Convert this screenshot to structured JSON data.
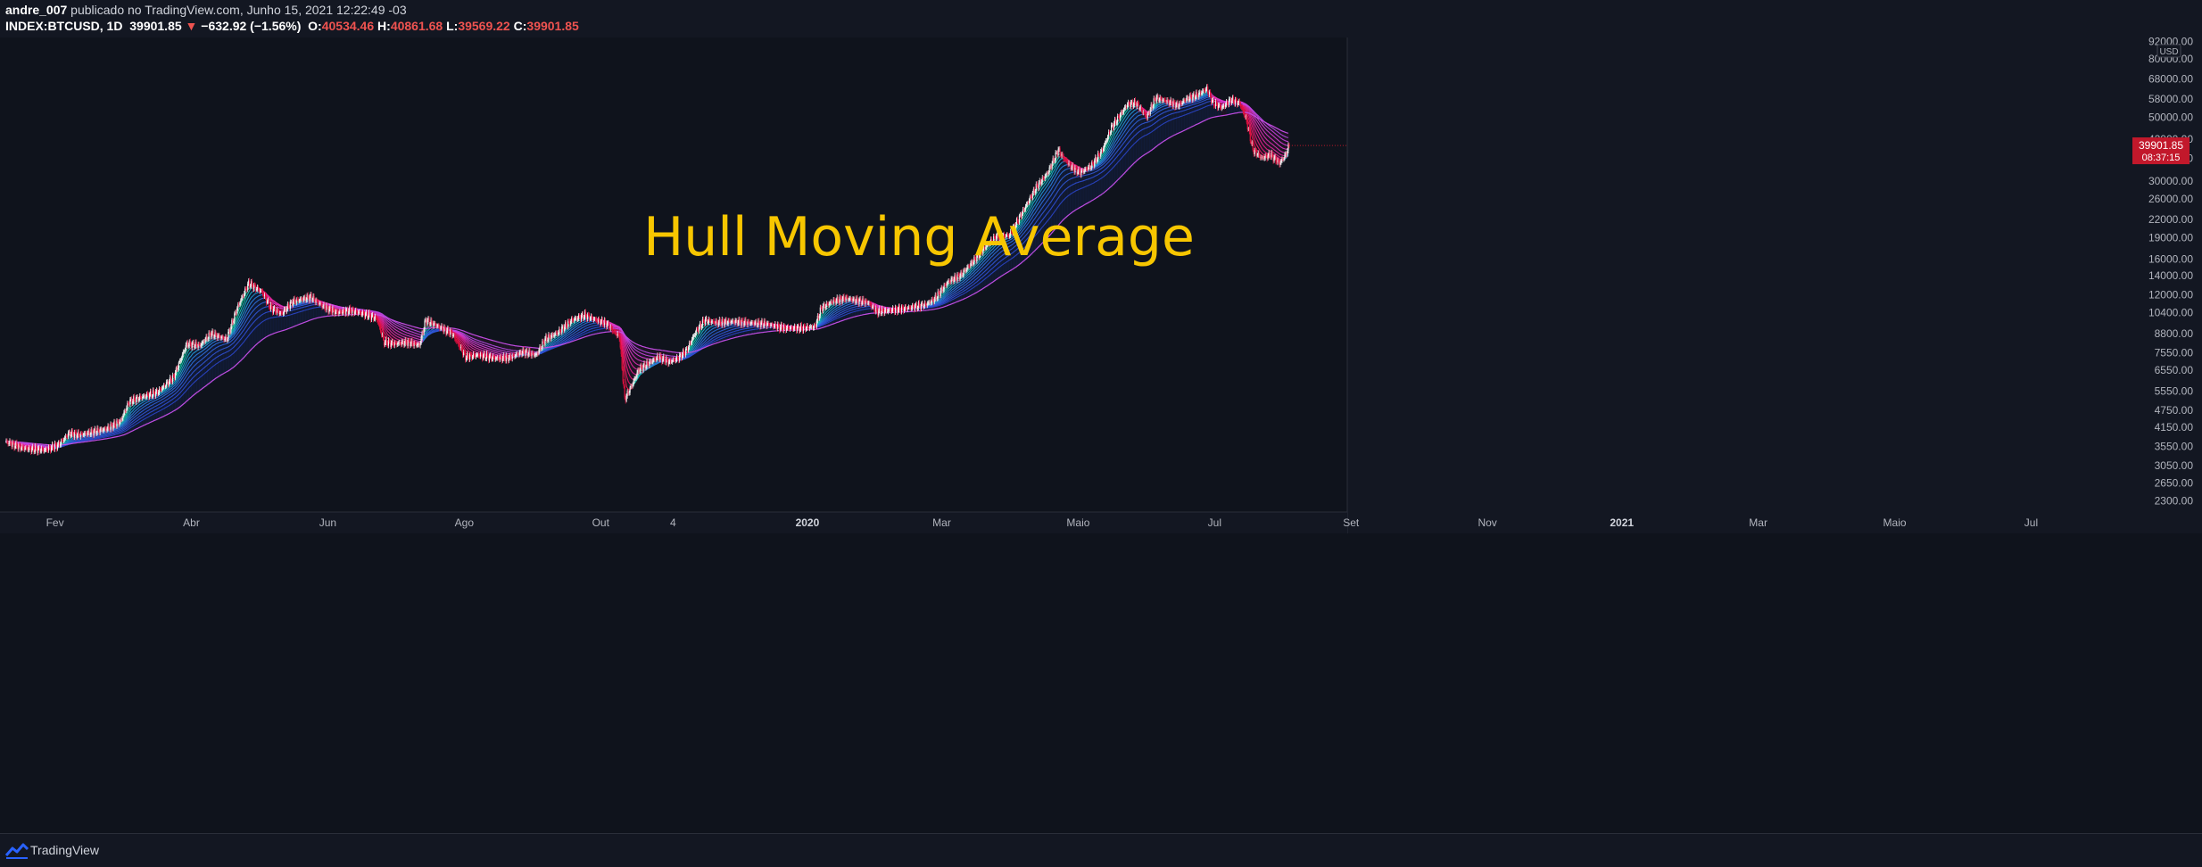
{
  "header": {
    "user": "andre_007",
    "published_text": " publicado no TradingView.com, Junho 15, 2021 12:22:49 -03",
    "symbol": "INDEX:BTCUSD, 1D",
    "last": "39901.85",
    "change": "−632.92 (−1.56%)",
    "open_label": "O:",
    "open": "40534.46",
    "high_label": "H:",
    "high": "40861.68",
    "low_label": "L:",
    "low": "39569.22",
    "close_label": "C:",
    "close": "39901.85"
  },
  "footer": {
    "brand": "TradingView"
  },
  "colors": {
    "background": "#0f131c",
    "up_candle": "#f2f2f2",
    "down_candle": "#e0103f",
    "bull_ribbon": [
      "#16d9a4",
      "#1ab0c8",
      "#2a7fe0",
      "#2f4fd6"
    ],
    "bear_ribbon": [
      "#ff1a55",
      "#e8208e",
      "#d83dd8"
    ],
    "title": "#f7c600",
    "price_label": "#c2182b"
  },
  "chart_data": {
    "type": "line",
    "title": "Hull Moving Average",
    "series_description": "BTCUSD daily candles with Hull Moving Average ribbon",
    "x_ticks": [
      "Fev",
      "Abr",
      "Jun",
      "Ago",
      "Out",
      "4",
      "2020",
      "Mar",
      "Maio",
      "Jul",
      "Set",
      "Nov",
      "2021",
      "Mar",
      "Maio",
      "Jul"
    ],
    "y_unit": "USD",
    "y_scale": "log",
    "y_ticks": [
      "92000.00",
      "80000.00",
      "68000.00",
      "58000.00",
      "50000.00",
      "42000.00",
      "36000.00",
      "30000.00",
      "26000.00",
      "22000.00",
      "19000.00",
      "16000.00",
      "14000.00",
      "12000.00",
      "10400.00",
      "8800.00",
      "7550.00",
      "6550.00",
      "5550.00",
      "4750.00",
      "4150.00",
      "3550.00",
      "3050.00",
      "2650.00",
      "2300.00"
    ],
    "ylim": [
      2100,
      95000
    ],
    "last_price": "39901.85",
    "countdown": "08:37:15",
    "price_path": [
      [
        0,
        3700
      ],
      [
        20,
        3500
      ],
      [
        45,
        3450
      ],
      [
        60,
        3600
      ],
      [
        72,
        3950
      ],
      [
        84,
        3900
      ],
      [
        100,
        4000
      ],
      [
        115,
        4100
      ],
      [
        130,
        4350
      ],
      [
        140,
        5100
      ],
      [
        155,
        5300
      ],
      [
        172,
        5500
      ],
      [
        190,
        6200
      ],
      [
        205,
        8100
      ],
      [
        220,
        8000
      ],
      [
        232,
        8800
      ],
      [
        250,
        8400
      ],
      [
        262,
        10800
      ],
      [
        275,
        13200
      ],
      [
        290,
        12300
      ],
      [
        300,
        10800
      ],
      [
        312,
        10300
      ],
      [
        325,
        11400
      ],
      [
        345,
        11800
      ],
      [
        360,
        10900
      ],
      [
        375,
        10400
      ],
      [
        390,
        10600
      ],
      [
        410,
        10200
      ],
      [
        420,
        9900
      ],
      [
        428,
        8200
      ],
      [
        440,
        8100
      ],
      [
        455,
        8200
      ],
      [
        468,
        8000
      ],
      [
        475,
        9800
      ],
      [
        490,
        9300
      ],
      [
        505,
        8800
      ],
      [
        520,
        7300
      ],
      [
        535,
        7400
      ],
      [
        555,
        7200
      ],
      [
        570,
        7250
      ],
      [
        585,
        7600
      ],
      [
        600,
        7400
      ],
      [
        610,
        8400
      ],
      [
        625,
        8900
      ],
      [
        640,
        9800
      ],
      [
        655,
        10200
      ],
      [
        668,
        9800
      ],
      [
        680,
        9500
      ],
      [
        688,
        8900
      ],
      [
        694,
        8600
      ],
      [
        700,
        5200
      ],
      [
        708,
        5800
      ],
      [
        716,
        6600
      ],
      [
        726,
        6900
      ],
      [
        738,
        7300
      ],
      [
        750,
        7000
      ],
      [
        760,
        7200
      ],
      [
        770,
        7700
      ],
      [
        780,
        8900
      ],
      [
        790,
        9800
      ],
      [
        805,
        9600
      ],
      [
        820,
        9700
      ],
      [
        840,
        9600
      ],
      [
        860,
        9500
      ],
      [
        880,
        9200
      ],
      [
        900,
        9200
      ],
      [
        915,
        9300
      ],
      [
        922,
        10800
      ],
      [
        935,
        11400
      ],
      [
        950,
        11700
      ],
      [
        960,
        11500
      ],
      [
        975,
        11300
      ],
      [
        985,
        10500
      ],
      [
        1000,
        10600
      ],
      [
        1020,
        10800
      ],
      [
        1040,
        11100
      ],
      [
        1050,
        11600
      ],
      [
        1065,
        13300
      ],
      [
        1080,
        14100
      ],
      [
        1095,
        15900
      ],
      [
        1110,
        18000
      ],
      [
        1120,
        19200
      ],
      [
        1135,
        19400
      ],
      [
        1150,
        23500
      ],
      [
        1165,
        28500
      ],
      [
        1178,
        32000
      ],
      [
        1190,
        38500
      ],
      [
        1196,
        36000
      ],
      [
        1205,
        33500
      ],
      [
        1215,
        32000
      ],
      [
        1228,
        34000
      ],
      [
        1240,
        38500
      ],
      [
        1250,
        46000
      ],
      [
        1260,
        51000
      ],
      [
        1268,
        55500
      ],
      [
        1278,
        56000
      ],
      [
        1290,
        50000
      ],
      [
        1300,
        58500
      ],
      [
        1312,
        57000
      ],
      [
        1325,
        55000
      ],
      [
        1335,
        58000
      ],
      [
        1348,
        60000
      ],
      [
        1358,
        63000
      ],
      [
        1365,
        56000
      ],
      [
        1375,
        54000
      ],
      [
        1385,
        57500
      ],
      [
        1395,
        56000
      ],
      [
        1402,
        49500
      ],
      [
        1410,
        38500
      ],
      [
        1420,
        36000
      ],
      [
        1430,
        37000
      ],
      [
        1440,
        34500
      ],
      [
        1447,
        37000
      ],
      [
        1451,
        39901
      ]
    ]
  }
}
